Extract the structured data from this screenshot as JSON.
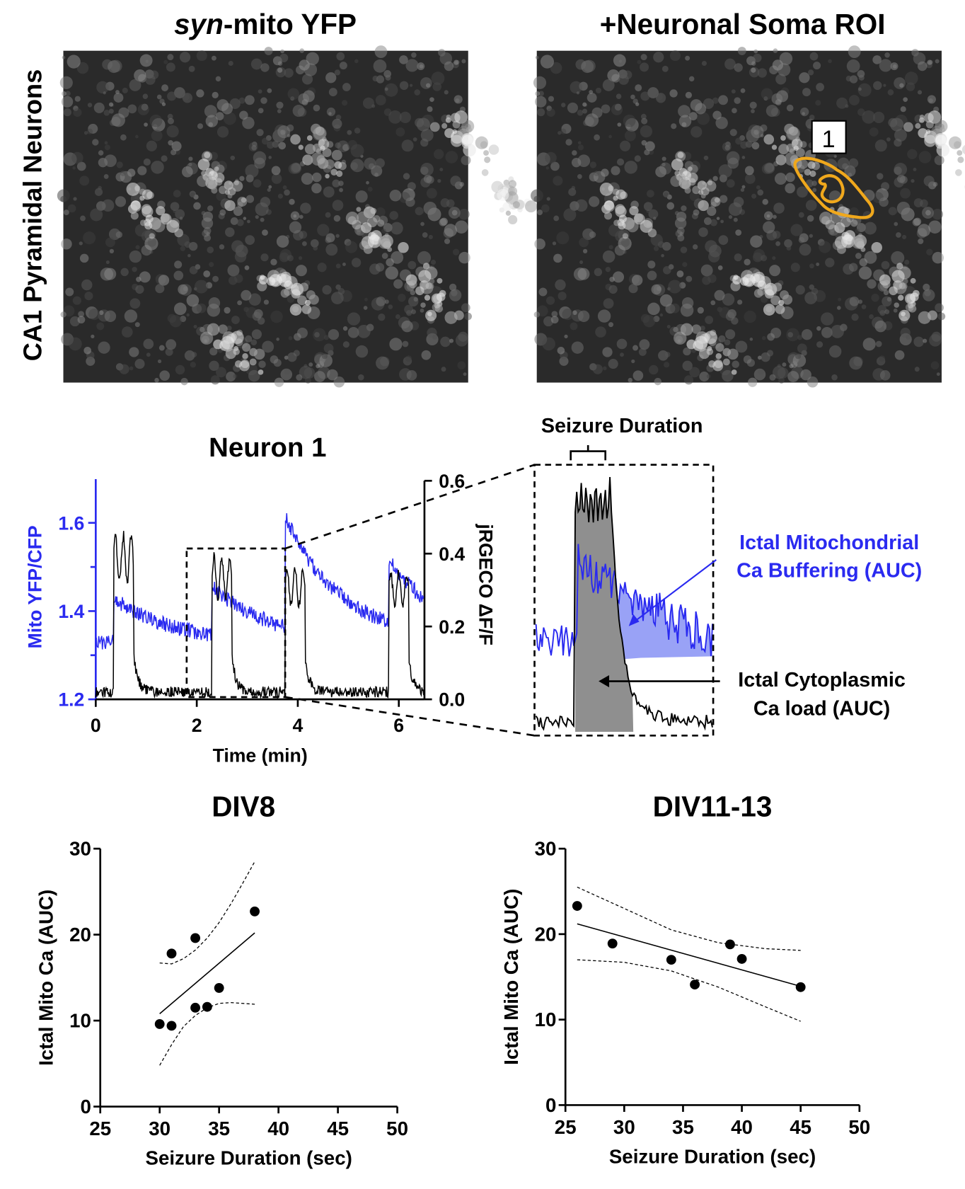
{
  "panels": {
    "image_left_title_italic": "syn",
    "image_left_title_rest": "-mito YFP",
    "image_right_title": "+Neuronal Soma ROI",
    "row_label": "CA1 Pyramidal Neurons",
    "roi_label": "1",
    "roi_color": "#f0a81c"
  },
  "chart_data": [
    {
      "type": "line",
      "title": "Neuron 1",
      "xlabel": "Time (min)",
      "ylabel_left": "Mito YFP/CFP",
      "ylabel_right": "jRGECO ΔF/F",
      "xlim": [
        0,
        6.5
      ],
      "ylim_left": [
        1.2,
        1.7
      ],
      "ylim_right": [
        0.0,
        0.6
      ],
      "xticks": [
        "0",
        "2",
        "4",
        "6"
      ],
      "yticks_left": [
        "1.2",
        "1.4",
        "1.6"
      ],
      "yticks_right": [
        "0.0",
        "0.2",
        "0.4",
        "0.6"
      ],
      "series": [
        {
          "color": "#2a2af0",
          "axis": "left",
          "baseline": 1.33,
          "events": [
            {
              "onset": 0.35,
              "peak": 1.43
            },
            {
              "onset": 2.3,
              "peak": 1.44
            },
            {
              "onset": 3.75,
              "peak": 1.58
            },
            {
              "onset": 5.8,
              "peak": 1.47
            }
          ]
        },
        {
          "color": "#000000",
          "axis": "right",
          "baseline": 0.02,
          "events": [
            {
              "onset": 0.35,
              "peak": 0.45
            },
            {
              "onset": 2.3,
              "peak": 0.39
            },
            {
              "onset": 3.75,
              "peak": 0.36
            },
            {
              "onset": 5.8,
              "peak": 0.35
            }
          ]
        }
      ],
      "zoom_window_min": [
        1.8,
        3.75
      ]
    },
    {
      "type": "area",
      "title": "Seizure Duration",
      "annotations": [
        {
          "text_line1": "Ictal Mitochondrial",
          "text_line2": "Ca Buffering (AUC)",
          "color": "#2a2af0",
          "fill": "#8e98f5"
        },
        {
          "text_line1": "Ictal Cytoplasmic",
          "text_line2": "Ca load (AUC)",
          "color": "#000000",
          "fill": "#8f8f8f"
        }
      ]
    },
    {
      "type": "scatter",
      "title": "DIV8",
      "xlabel": "Seizure Duration (sec)",
      "ylabel": "Ictal Mito Ca (AUC)",
      "xlim": [
        25,
        50
      ],
      "ylim": [
        0,
        30
      ],
      "xticks": [
        "25",
        "30",
        "35",
        "40",
        "45",
        "50"
      ],
      "yticks": [
        "0",
        "10",
        "20",
        "30"
      ],
      "points": [
        [
          30,
          9.6
        ],
        [
          31,
          9.4
        ],
        [
          31,
          17.8
        ],
        [
          33,
          19.6
        ],
        [
          33,
          11.5
        ],
        [
          34,
          11.6
        ],
        [
          35,
          13.8
        ],
        [
          38,
          22.7
        ]
      ],
      "fit_line": [
        [
          30,
          10.8
        ],
        [
          38,
          20.2
        ]
      ],
      "ci_upper": [
        [
          30,
          16.7
        ],
        [
          31,
          16.6
        ],
        [
          32,
          17.2
        ],
        [
          33,
          18.2
        ],
        [
          34,
          19.6
        ],
        [
          35,
          21.4
        ],
        [
          36,
          23.6
        ],
        [
          37,
          26
        ],
        [
          38,
          28.5
        ]
      ],
      "ci_lower": [
        [
          30,
          4.8
        ],
        [
          31,
          7.2
        ],
        [
          32,
          9.3
        ],
        [
          33,
          10.6
        ],
        [
          34,
          11.5
        ],
        [
          35,
          12
        ],
        [
          36,
          12.1
        ],
        [
          37,
          12
        ],
        [
          38,
          11.9
        ]
      ]
    },
    {
      "type": "scatter",
      "title": "DIV11-13",
      "xlabel": "Seizure Duration (sec)",
      "ylabel": "Ictal Mito Ca (AUC)",
      "xlim": [
        25,
        50
      ],
      "ylim": [
        0,
        30
      ],
      "xticks": [
        "25",
        "30",
        "35",
        "40",
        "45",
        "50"
      ],
      "yticks": [
        "0",
        "10",
        "20",
        "30"
      ],
      "points": [
        [
          26,
          23.3
        ],
        [
          29,
          18.9
        ],
        [
          34,
          17
        ],
        [
          36,
          14.1
        ],
        [
          39,
          18.8
        ],
        [
          40,
          17.1
        ],
        [
          45,
          13.8
        ]
      ],
      "fit_line": [
        [
          26,
          21.2
        ],
        [
          45,
          13.9
        ]
      ],
      "ci_upper": [
        [
          26,
          25.5
        ],
        [
          30,
          23
        ],
        [
          34,
          20.5
        ],
        [
          38,
          19
        ],
        [
          42,
          18.3
        ],
        [
          45,
          18.1
        ]
      ],
      "ci_lower": [
        [
          26,
          17
        ],
        [
          30,
          16.7
        ],
        [
          34,
          15.7
        ],
        [
          38,
          13.8
        ],
        [
          42,
          11.5
        ],
        [
          45,
          9.8
        ]
      ]
    }
  ]
}
